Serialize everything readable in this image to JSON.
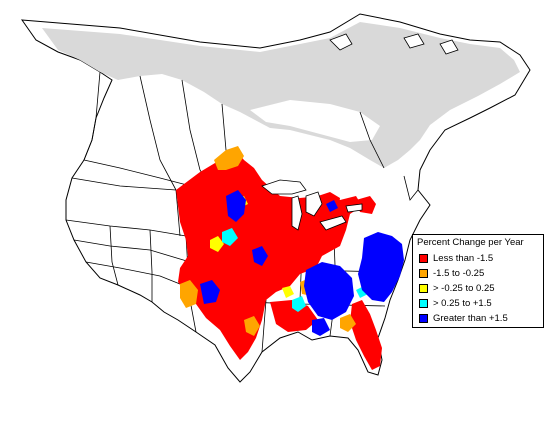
{
  "legend": {
    "title": "Percent Change per Year",
    "items": [
      {
        "label": "Less than -1.5",
        "color": "#ff0000"
      },
      {
        "label": "-1.5 to -0.25",
        "color": "#ffa500"
      },
      {
        "label": "> -0.25 to 0.25",
        "color": "#ffff00"
      },
      {
        "label": "> 0.25 to +1.5",
        "color": "#00ffff"
      },
      {
        "label": "Greater than +1.5",
        "color": "#0000ff"
      }
    ]
  },
  "map": {
    "no_data_color": "#d9d9d9",
    "boundary_color": "#000000"
  }
}
